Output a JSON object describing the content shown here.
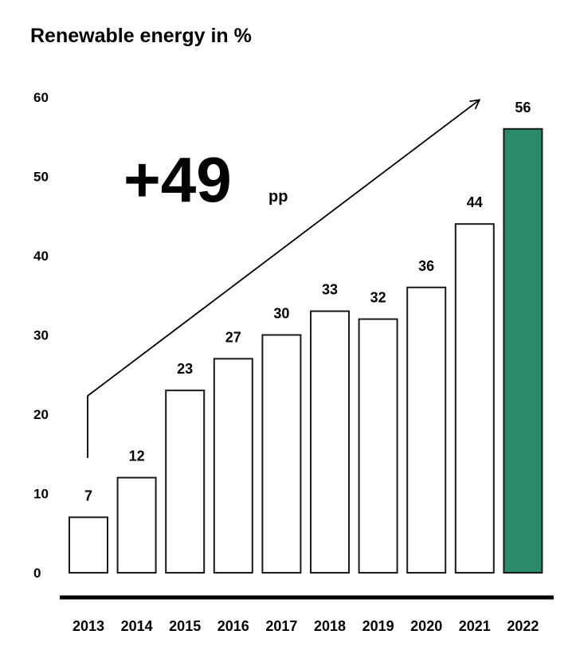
{
  "chart_data": {
    "type": "bar",
    "title": "Renewable energy in %",
    "categories": [
      "2013",
      "2014",
      "2015",
      "2016",
      "2017",
      "2018",
      "2019",
      "2020",
      "2021",
      "2022"
    ],
    "values": [
      7,
      12,
      23,
      27,
      30,
      33,
      32,
      36,
      44,
      56
    ],
    "ylim": [
      0,
      60
    ],
    "yticks": [
      0,
      10,
      20,
      30,
      40,
      50,
      60
    ],
    "highlight_category": "2022",
    "colors": {
      "bar_default": "#ffffff",
      "bar_highlight": "#2a8a6b",
      "stroke": "#1a1a1a"
    },
    "grid": false,
    "annotation": {
      "value": "+49",
      "unit": "pp"
    }
  }
}
